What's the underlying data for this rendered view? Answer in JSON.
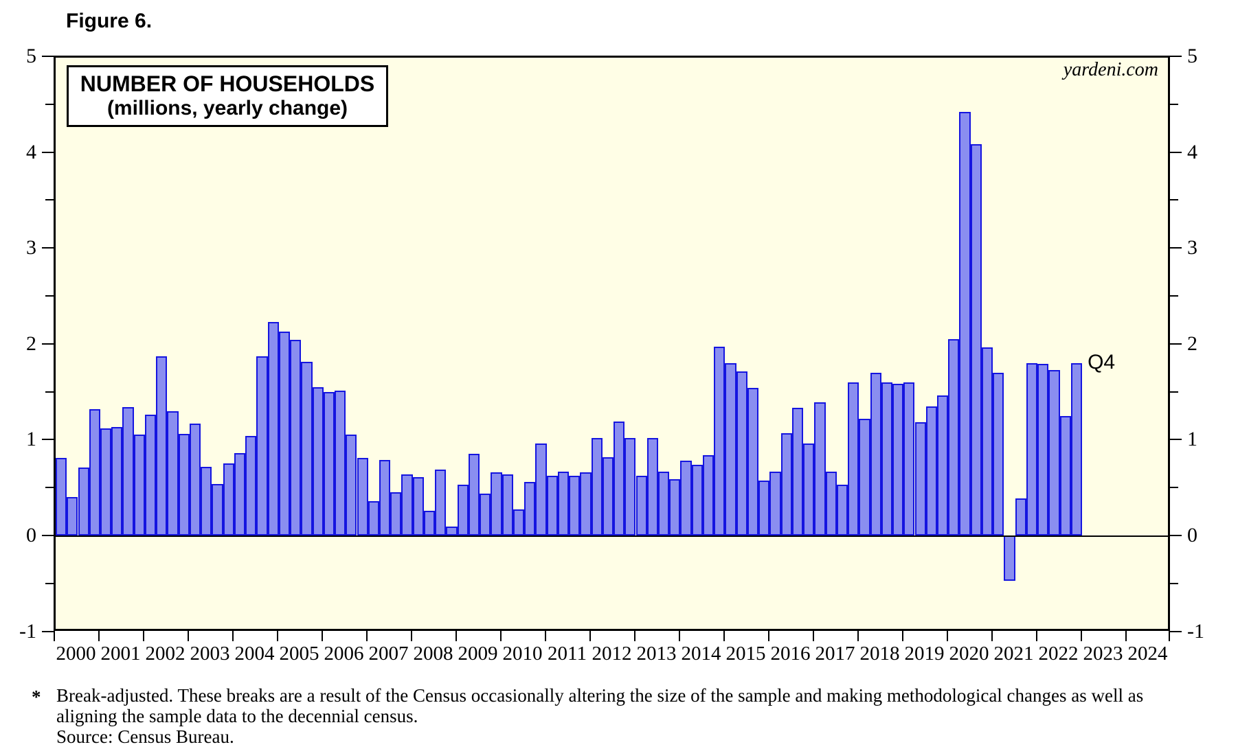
{
  "figure_label": "Figure 6.",
  "title": {
    "line1": "NUMBER OF HOUSEHOLDS",
    "line2": "(millions, yearly change)"
  },
  "watermark": "yardeni.com",
  "annotation_last_bar": "Q4",
  "footnote": {
    "asterisk": "*",
    "line1": "Break-adjusted. These breaks are a result of the Census occasionally altering the size of the sample and making methodological changes as well as",
    "line2": "aligning the sample data to the decennial census.",
    "line3": "Source: Census Bureau."
  },
  "colors": {
    "plot_background": "#fffee6",
    "bar_fill": "#8a8ef0",
    "bar_border": "#1515e0",
    "axis": "#000000",
    "page_background": "#ffffff"
  },
  "chart_data": {
    "type": "bar",
    "title": "NUMBER OF HOUSEHOLDS (millions, yearly change)",
    "ylabel": "millions, yearly change",
    "xlabel": "",
    "ylim": [
      -1,
      5
    ],
    "y_major_ticks": [
      -1,
      0,
      1,
      2,
      3,
      4,
      5
    ],
    "y_minor_ticks": [
      -0.5,
      0.5,
      1.5,
      2.5,
      3.5,
      4.5
    ],
    "x_year_labels": [
      "2000",
      "2001",
      "2002",
      "2003",
      "2004",
      "2005",
      "2006",
      "2007",
      "2008",
      "2009",
      "2010",
      "2011",
      "2012",
      "2013",
      "2014",
      "2015",
      "2016",
      "2017",
      "2018",
      "2019",
      "2020",
      "2021",
      "2022",
      "2023",
      "2024"
    ],
    "x_axis_span_years": 25,
    "grid": false,
    "legend": "none",
    "frequency": "quarterly",
    "start_period": "2000 Q1",
    "end_period": "2022 Q4",
    "series": [
      {
        "name": "Number of households, yearly change (millions)",
        "values": [
          0.81,
          0.4,
          0.71,
          1.32,
          1.12,
          1.13,
          1.34,
          1.05,
          1.26,
          1.87,
          1.3,
          1.06,
          1.17,
          0.72,
          0.54,
          0.75,
          0.86,
          1.04,
          1.87,
          2.23,
          2.13,
          2.04,
          1.81,
          1.55,
          1.5,
          1.51,
          1.05,
          0.81,
          0.36,
          0.79,
          0.45,
          0.64,
          0.61,
          0.26,
          0.69,
          0.09,
          0.53,
          0.85,
          0.44,
          0.66,
          0.64,
          0.27,
          0.56,
          0.96,
          0.62,
          0.67,
          0.62,
          0.66,
          1.02,
          0.82,
          1.19,
          1.02,
          0.62,
          1.02,
          0.67,
          0.59,
          0.78,
          0.74,
          0.84,
          1.97,
          1.8,
          1.71,
          1.54,
          0.57,
          0.67,
          1.07,
          1.33,
          0.96,
          1.39,
          0.67,
          0.53,
          1.6,
          1.22,
          1.7,
          1.6,
          1.58,
          1.6,
          1.18,
          1.35,
          1.46,
          2.05,
          4.42,
          4.08,
          1.96,
          1.7,
          -0.47,
          0.39,
          1.8,
          1.79,
          1.73,
          1.25,
          1.8
        ]
      }
    ]
  }
}
